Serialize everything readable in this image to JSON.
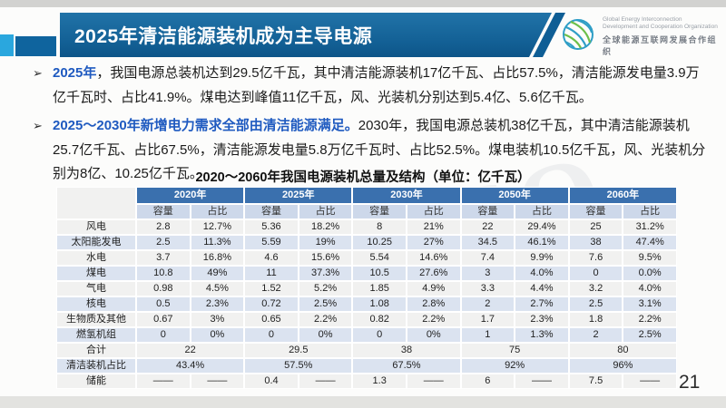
{
  "header": {
    "title": "2025年清洁能源装机成为主导电源",
    "logo": {
      "icon": "globe-icon",
      "org_en_line1": "Global Energy Interconnection",
      "org_en_line2": "Development and Cooperation Organization",
      "org_zh": "全球能源互联网发展合作组织"
    }
  },
  "bullets": [
    {
      "marker": "➢",
      "lead": "2025年",
      "rest": "，我国电源总装机达到29.5亿千瓦，其中清洁能源装机17亿千瓦、占比57.5%，清洁能源发电量3.9万亿千瓦时、占比41.9%。煤电达到峰值11亿千瓦，风、光装机分别达到5.4亿、5.6亿千瓦。"
    },
    {
      "marker": "➢",
      "lead": "2025～2030年新增电力需求全部由清洁能源满足。",
      "rest": "2030年，我国电源总装机38亿千瓦，其中清洁能源装机25.7亿千瓦、占比67.5%，清洁能源发电量5.8万亿千瓦时、占比52.5%。煤电装机10.5亿千瓦，风、光装机分别为8亿、10.25亿千瓦。"
    }
  ],
  "table": {
    "title": "2020～2060年我国电源装机总量及结构（单位：亿千瓦）",
    "years": [
      "2020年",
      "2025年",
      "2030年",
      "2050年",
      "2060年"
    ],
    "subheaders": {
      "capacity": "容量",
      "share": "占比"
    },
    "rows": [
      {
        "label": "风电",
        "values": [
          "2.8",
          "12.7%",
          "5.36",
          "18.2%",
          "8",
          "21%",
          "22",
          "29.4%",
          "25",
          "31.2%"
        ]
      },
      {
        "label": "太阳能发电",
        "values": [
          "2.5",
          "11.3%",
          "5.59",
          "19%",
          "10.25",
          "27%",
          "34.5",
          "46.1%",
          "38",
          "47.4%"
        ]
      },
      {
        "label": "水电",
        "values": [
          "3.7",
          "16.8%",
          "4.6",
          "15.6%",
          "5.54",
          "14.6%",
          "7.4",
          "9.9%",
          "7.6",
          "9.5%"
        ]
      },
      {
        "label": "煤电",
        "values": [
          "10.8",
          "49%",
          "11",
          "37.3%",
          "10.5",
          "27.6%",
          "3",
          "4.0%",
          "0",
          "0.0%"
        ]
      },
      {
        "label": "气电",
        "values": [
          "0.98",
          "4.5%",
          "1.52",
          "5.2%",
          "1.85",
          "4.9%",
          "3.3",
          "4.4%",
          "3.2",
          "4.0%"
        ]
      },
      {
        "label": "核电",
        "values": [
          "0.5",
          "2.3%",
          "0.72",
          "2.5%",
          "1.08",
          "2.8%",
          "2",
          "2.7%",
          "2.5",
          "3.1%"
        ]
      },
      {
        "label": "生物质及其他",
        "values": [
          "0.67",
          "3%",
          "0.65",
          "2.2%",
          "0.82",
          "2.2%",
          "1.7",
          "2.3%",
          "1.8",
          "2.2%"
        ]
      },
      {
        "label": "燃氢机组",
        "values": [
          "0",
          "0%",
          "0",
          "0%",
          "0",
          "0%",
          "1",
          "1.3%",
          "2",
          "2.5%"
        ]
      }
    ],
    "total_row": {
      "label": "合计",
      "values": [
        "22",
        "29.5",
        "38",
        "75",
        "80"
      ]
    },
    "clean_share_row": {
      "label": "清洁装机占比",
      "values": [
        "43.4%",
        "57.5%",
        "67.5%",
        "92%",
        "96%"
      ]
    },
    "storage_row": {
      "label": "储能",
      "values": [
        "——",
        "——",
        "0.4",
        "——",
        "1.3",
        "——",
        "6",
        "——",
        "7.5",
        "——"
      ]
    }
  },
  "watermark": "GEIDCO",
  "page_number": "21",
  "colors": {
    "title_bar_blue": "#14649b",
    "accent_light_blue": "#2aa7de",
    "accent_dark_blue": "#0f649e",
    "table_header_blue": "#3a70ae",
    "row_blue": "#dbe3f0",
    "row_light": "#f1f1f0",
    "lead_text_blue": "#1f5ac0"
  }
}
